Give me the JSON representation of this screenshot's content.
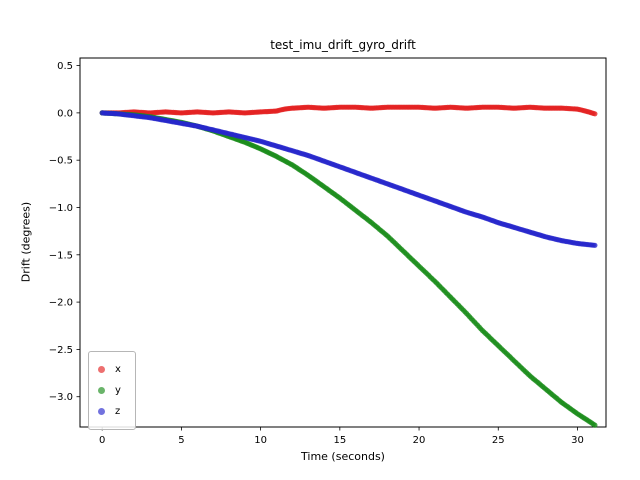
{
  "chart_data": {
    "type": "scatter",
    "title": "test_imu_drift_gyro_drift",
    "xlabel": "Time (seconds)",
    "ylabel": "Drift (degrees)",
    "xlim": [
      -1.4,
      31.8
    ],
    "ylim": [
      -3.32,
      0.58
    ],
    "x_ticks": [
      0,
      5,
      10,
      15,
      20,
      25,
      30
    ],
    "x_tick_labels": [
      "0",
      "5",
      "10",
      "15",
      "20",
      "25",
      "30"
    ],
    "y_ticks": [
      0.5,
      0.0,
      -0.5,
      -1.0,
      -1.5,
      -2.0,
      -2.5,
      -3.0
    ],
    "y_tick_labels": [
      "0.5",
      "0.0",
      "−0.5",
      "−1.0",
      "−1.5",
      "−2.0",
      "−2.5",
      "−3.0"
    ],
    "grid": false,
    "legend_position": "lower left",
    "sample_step": 0.1,
    "marker_radius": 2.6,
    "series": [
      {
        "name": "x",
        "color": "#e32222",
        "points": [
          [
            0,
            0.0
          ],
          [
            1,
            0.0
          ],
          [
            2,
            0.01
          ],
          [
            3,
            0.0
          ],
          [
            4,
            0.01
          ],
          [
            5,
            0.0
          ],
          [
            6,
            0.01
          ],
          [
            7,
            0.0
          ],
          [
            8,
            0.01
          ],
          [
            9,
            0.0
          ],
          [
            10,
            0.01
          ],
          [
            11,
            0.02
          ],
          [
            11.5,
            0.04
          ],
          [
            12,
            0.05
          ],
          [
            13,
            0.06
          ],
          [
            14,
            0.05
          ],
          [
            15,
            0.06
          ],
          [
            16,
            0.06
          ],
          [
            17,
            0.05
          ],
          [
            18,
            0.06
          ],
          [
            19,
            0.06
          ],
          [
            20,
            0.06
          ],
          [
            21,
            0.05
          ],
          [
            22,
            0.06
          ],
          [
            23,
            0.05
          ],
          [
            24,
            0.06
          ],
          [
            25,
            0.06
          ],
          [
            26,
            0.05
          ],
          [
            27,
            0.06
          ],
          [
            28,
            0.05
          ],
          [
            29,
            0.05
          ],
          [
            30,
            0.04
          ],
          [
            30.5,
            0.02
          ],
          [
            31.1,
            -0.01
          ]
        ]
      },
      {
        "name": "y",
        "color": "#1a8c1a",
        "points": [
          [
            0,
            0.0
          ],
          [
            1,
            -0.01
          ],
          [
            2,
            -0.02
          ],
          [
            3,
            -0.04
          ],
          [
            4,
            -0.07
          ],
          [
            5,
            -0.1
          ],
          [
            6,
            -0.14
          ],
          [
            7,
            -0.19
          ],
          [
            8,
            -0.25
          ],
          [
            9,
            -0.31
          ],
          [
            10,
            -0.38
          ],
          [
            11,
            -0.46
          ],
          [
            12,
            -0.55
          ],
          [
            13,
            -0.66
          ],
          [
            14,
            -0.78
          ],
          [
            15,
            -0.9
          ],
          [
            16,
            -1.03
          ],
          [
            17,
            -1.16
          ],
          [
            18,
            -1.3
          ],
          [
            19,
            -1.46
          ],
          [
            20,
            -1.62
          ],
          [
            21,
            -1.78
          ],
          [
            22,
            -1.95
          ],
          [
            23,
            -2.12
          ],
          [
            24,
            -2.3
          ],
          [
            25,
            -2.46
          ],
          [
            26,
            -2.62
          ],
          [
            27,
            -2.78
          ],
          [
            28,
            -2.92
          ],
          [
            29,
            -3.06
          ],
          [
            30,
            -3.18
          ],
          [
            31.1,
            -3.3
          ]
        ]
      },
      {
        "name": "z",
        "color": "#2727cc",
        "points": [
          [
            0,
            0.0
          ],
          [
            1,
            -0.01
          ],
          [
            2,
            -0.03
          ],
          [
            3,
            -0.05
          ],
          [
            4,
            -0.08
          ],
          [
            5,
            -0.11
          ],
          [
            6,
            -0.14
          ],
          [
            7,
            -0.18
          ],
          [
            8,
            -0.22
          ],
          [
            9,
            -0.26
          ],
          [
            10,
            -0.3
          ],
          [
            11,
            -0.35
          ],
          [
            12,
            -0.4
          ],
          [
            13,
            -0.45
          ],
          [
            14,
            -0.51
          ],
          [
            15,
            -0.57
          ],
          [
            16,
            -0.63
          ],
          [
            17,
            -0.69
          ],
          [
            18,
            -0.75
          ],
          [
            19,
            -0.81
          ],
          [
            20,
            -0.87
          ],
          [
            21,
            -0.93
          ],
          [
            22,
            -0.99
          ],
          [
            23,
            -1.05
          ],
          [
            24,
            -1.1
          ],
          [
            25,
            -1.16
          ],
          [
            26,
            -1.21
          ],
          [
            27,
            -1.26
          ],
          [
            28,
            -1.31
          ],
          [
            29,
            -1.35
          ],
          [
            30,
            -1.38
          ],
          [
            31.1,
            -1.4
          ]
        ]
      }
    ]
  }
}
